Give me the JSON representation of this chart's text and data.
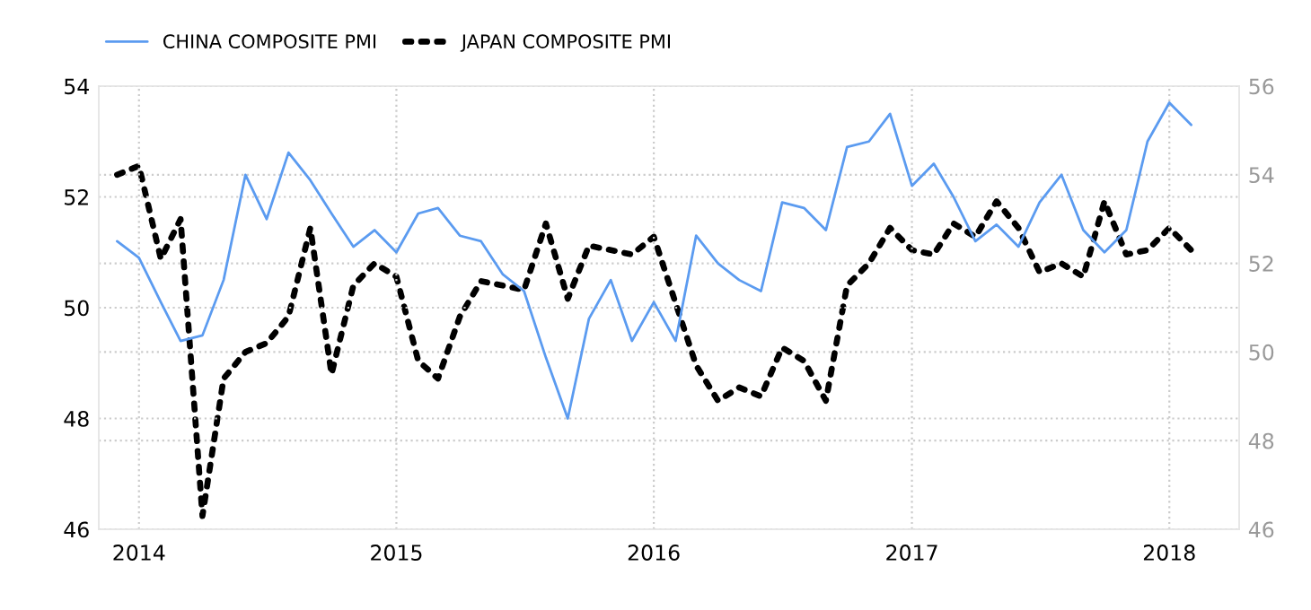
{
  "chart_data": {
    "type": "line",
    "x": [
      "2013-12",
      "2014-01",
      "2014-02",
      "2014-03",
      "2014-04",
      "2014-05",
      "2014-06",
      "2014-07",
      "2014-08",
      "2014-09",
      "2014-10",
      "2014-11",
      "2014-12",
      "2015-01",
      "2015-02",
      "2015-03",
      "2015-04",
      "2015-05",
      "2015-06",
      "2015-07",
      "2015-08",
      "2015-09",
      "2015-10",
      "2015-11",
      "2015-12",
      "2016-01",
      "2016-02",
      "2016-03",
      "2016-04",
      "2016-05",
      "2016-06",
      "2016-07",
      "2016-08",
      "2016-09",
      "2016-10",
      "2016-11",
      "2016-12",
      "2017-01",
      "2017-02",
      "2017-03",
      "2017-04",
      "2017-05",
      "2017-06",
      "2017-07",
      "2017-08",
      "2017-09",
      "2017-10",
      "2017-11",
      "2017-12",
      "2018-01",
      "2018-02"
    ],
    "series": [
      {
        "name": "CHINA COMPOSITE PMI",
        "color": "#5b9bf0",
        "line_style": "solid",
        "axis": "y",
        "values": [
          51.2,
          50.9,
          50.1,
          49.4,
          49.5,
          50.5,
          52.4,
          51.6,
          52.8,
          52.3,
          51.7,
          51.1,
          51.4,
          51.0,
          51.7,
          51.8,
          51.3,
          51.2,
          50.6,
          50.3,
          49.1,
          48.0,
          49.8,
          50.5,
          49.4,
          50.1,
          49.4,
          51.3,
          50.8,
          50.5,
          50.3,
          51.9,
          51.8,
          51.4,
          52.9,
          53.0,
          53.5,
          52.2,
          52.6,
          52.0,
          51.2,
          51.5,
          51.1,
          51.9,
          52.4,
          51.4,
          51.0,
          51.4,
          53.0,
          53.7,
          53.3
        ]
      },
      {
        "name": "JAPAN COMPOSITE PMI",
        "color": "#000000",
        "line_style": "dotted",
        "axis": "y2",
        "values": [
          54.0,
          54.2,
          52.1,
          53.0,
          46.3,
          49.4,
          50.0,
          50.2,
          50.8,
          52.8,
          49.5,
          51.5,
          52.0,
          51.7,
          49.8,
          49.4,
          50.8,
          51.6,
          51.5,
          51.4,
          52.9,
          51.2,
          52.4,
          52.3,
          52.2,
          52.6,
          51.1,
          49.7,
          48.9,
          49.2,
          49.0,
          50.1,
          49.8,
          48.9,
          51.5,
          52.0,
          52.8,
          52.3,
          52.2,
          52.9,
          52.6,
          53.4,
          52.8,
          51.8,
          52.0,
          51.7,
          53.4,
          52.2,
          52.3,
          52.8,
          52.3
        ]
      }
    ],
    "xlim": [
      "2013-11-05",
      "2018-04-10"
    ],
    "xticks": [
      {
        "value": "2014-01-01",
        "label": "2014"
      },
      {
        "value": "2015-01-01",
        "label": "2015"
      },
      {
        "value": "2016-01-01",
        "label": "2016"
      },
      {
        "value": "2017-01-01",
        "label": "2017"
      },
      {
        "value": "2018-01-01",
        "label": "2018"
      }
    ],
    "ylim": [
      46,
      54
    ],
    "yticks": [
      46,
      48,
      50,
      52,
      54
    ],
    "y2lim": [
      46,
      56
    ],
    "y2ticks": [
      46,
      48,
      50,
      52,
      54,
      56
    ],
    "grid": true,
    "legend": "top left"
  }
}
